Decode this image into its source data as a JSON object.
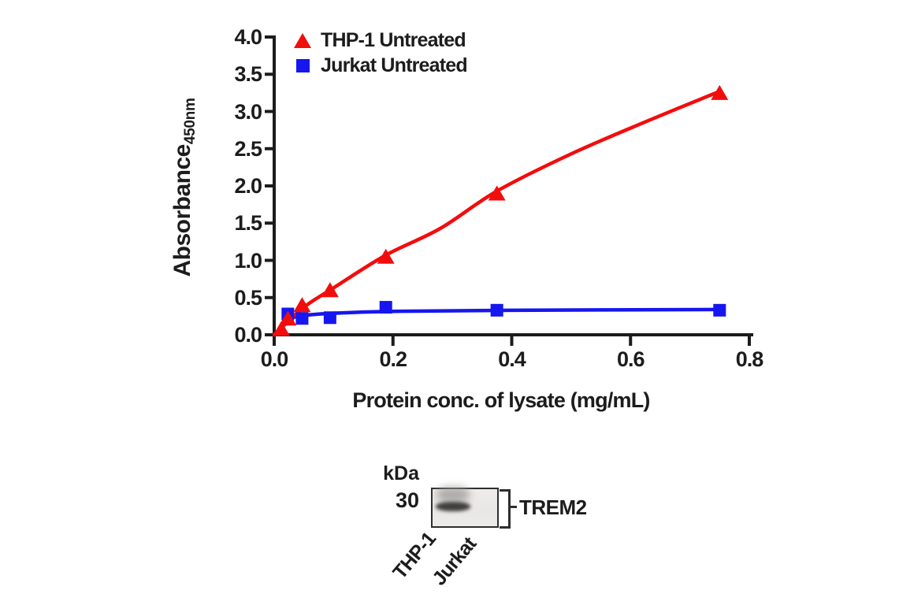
{
  "colors": {
    "red": "#f20d0d",
    "blue": "#1616f0",
    "axis": "#1c1c1c"
  },
  "chart_data": {
    "type": "scatter",
    "title": "",
    "xlabel": "Protein conc. of lysate (mg/mL)",
    "ylabel": "Absorbance",
    "ylabel_sub": "450nm",
    "xlim": [
      0,
      0.8
    ],
    "ylim": [
      0,
      4.0
    ],
    "xticks": [
      0,
      0.2,
      0.4,
      0.6,
      0.8
    ],
    "xtick_labels": [
      "0.0",
      "0.2",
      "0.4",
      "0.6",
      "0.8"
    ],
    "yticks": [
      0,
      0.5,
      1.0,
      1.5,
      2.0,
      2.5,
      3.0,
      3.5,
      4.0
    ],
    "ytick_labels": [
      "0.0",
      "0.5",
      "1.0",
      "1.5",
      "2.0",
      "2.5",
      "3.0",
      "3.5",
      "4.0"
    ],
    "grid": false,
    "legend_position": "top-left",
    "series": [
      {
        "name": "THP-1 Untreated",
        "color": "#f20d0d",
        "marker": "triangle",
        "points": [
          [
            0.012,
            0.08
          ],
          [
            0.023,
            0.22
          ],
          [
            0.047,
            0.4
          ],
          [
            0.094,
            0.6
          ],
          [
            0.188,
            1.05
          ],
          [
            0.375,
            1.9
          ],
          [
            0.75,
            3.25
          ]
        ],
        "fit_curve": [
          [
            0,
            0
          ],
          [
            0.05,
            0.37
          ],
          [
            0.1,
            0.63
          ],
          [
            0.188,
            1.07
          ],
          [
            0.28,
            1.43
          ],
          [
            0.375,
            1.93
          ],
          [
            0.5,
            2.43
          ],
          [
            0.625,
            2.86
          ],
          [
            0.75,
            3.27
          ]
        ]
      },
      {
        "name": "Jurkat Untreated",
        "color": "#1616f0",
        "marker": "square",
        "points": [
          [
            0.023,
            0.28
          ],
          [
            0.047,
            0.22
          ],
          [
            0.094,
            0.23
          ],
          [
            0.188,
            0.37
          ],
          [
            0.375,
            0.33
          ],
          [
            0.75,
            0.33
          ]
        ],
        "fit_curve": [
          [
            0.018,
            0.21
          ],
          [
            0.05,
            0.26
          ],
          [
            0.1,
            0.29
          ],
          [
            0.2,
            0.315
          ],
          [
            0.4,
            0.33
          ],
          [
            0.75,
            0.34
          ]
        ]
      }
    ]
  },
  "blot": {
    "kda_label": "kDa",
    "marker_value": "30",
    "target_label": "TREM2",
    "lanes": [
      "THP-1",
      "Jurkat"
    ],
    "band": {
      "lane": "THP-1",
      "kda": 30
    }
  }
}
